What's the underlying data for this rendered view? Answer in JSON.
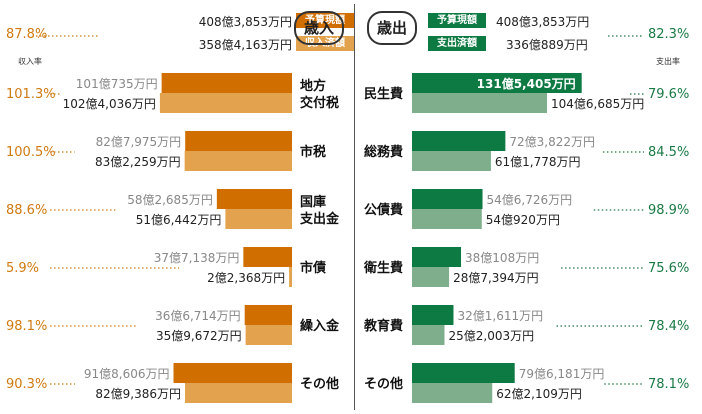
{
  "colors": {
    "revenue_budget": "#d06f00",
    "revenue_actual": "#e3a34e",
    "revenue_pct": "#d07a10",
    "expense_budget": "#0e7a43",
    "expense_actual": "#7eae8c",
    "expense_pct": "#1a7a45"
  },
  "revenue": {
    "title": "歳入",
    "tag_budget": "予算現額",
    "tag_actual": "収入済額",
    "total_budget": "408億3,853万円",
    "total_actual": "358億4,163万円",
    "total_rate": "87.8%",
    "rate_label": "収入率"
  },
  "expense": {
    "title": "歳出",
    "tag_budget": "予算現額",
    "tag_actual": "支出済額",
    "total_budget": "408億3,853万円",
    "total_actual": "336億889万円",
    "total_rate": "82.3%",
    "rate_label": "支出率"
  },
  "chart_data": [
    {
      "type": "bar",
      "title": "歳入",
      "unit": "億円",
      "series": [
        {
          "name": "予算現額"
        },
        {
          "name": "収入済額"
        }
      ],
      "categories": [
        {
          "label": "地方\n交付税",
          "budget": 101.0735,
          "actual": 102.4036,
          "budget_text": "101億735万円",
          "actual_text": "102億4,036万円",
          "rate": "101.3%"
        },
        {
          "label": "市税",
          "budget": 82.7975,
          "actual": 83.2259,
          "budget_text": "82億7,975万円",
          "actual_text": "83億2,259万円",
          "rate": "100.5%"
        },
        {
          "label": "国庫\n支出金",
          "budget": 58.2685,
          "actual": 51.6442,
          "budget_text": "58億2,685万円",
          "actual_text": "51億6,442万円",
          "rate": "88.6%"
        },
        {
          "label": "市債",
          "budget": 37.7138,
          "actual": 2.2368,
          "budget_text": "37億7,138万円",
          "actual_text": "2億2,368万円",
          "rate": "5.9%"
        },
        {
          "label": "繰入金",
          "budget": 36.6714,
          "actual": 35.9672,
          "budget_text": "36億6,714万円",
          "actual_text": "35億9,672万円",
          "rate": "98.1%"
        },
        {
          "label": "その他",
          "budget": 91.8606,
          "actual": 82.9386,
          "budget_text": "91億8,606万円",
          "actual_text": "82億9,386万円",
          "rate": "90.3%"
        }
      ]
    },
    {
      "type": "bar",
      "title": "歳出",
      "unit": "億円",
      "series": [
        {
          "name": "予算現額"
        },
        {
          "name": "支出済額"
        }
      ],
      "categories": [
        {
          "label": "民生費",
          "budget": 131.5405,
          "actual": 104.6685,
          "budget_text": "131億5,405万円",
          "actual_text": "104億6,685万円",
          "rate": "79.6%"
        },
        {
          "label": "総務費",
          "budget": 72.3822,
          "actual": 61.1778,
          "budget_text": "72億3,822万円",
          "actual_text": "61億1,778万円",
          "rate": "84.5%"
        },
        {
          "label": "公債費",
          "budget": 54.6726,
          "actual": 54.092,
          "budget_text": "54億6,726万円",
          "actual_text": "54億920万円",
          "rate": "98.9%"
        },
        {
          "label": "衛生費",
          "budget": 38.0108,
          "actual": 28.7394,
          "budget_text": "38億108万円",
          "actual_text": "28億7,394万円",
          "rate": "75.6%"
        },
        {
          "label": "教育費",
          "budget": 32.1611,
          "actual": 25.2003,
          "budget_text": "32億1,611万円",
          "actual_text": "25億2,003万円",
          "rate": "78.4%"
        },
        {
          "label": "その他",
          "budget": 79.6181,
          "actual": 62.2109,
          "budget_text": "79億6,181万円",
          "actual_text": "62億2,109万円",
          "rate": "78.1%"
        }
      ]
    }
  ]
}
